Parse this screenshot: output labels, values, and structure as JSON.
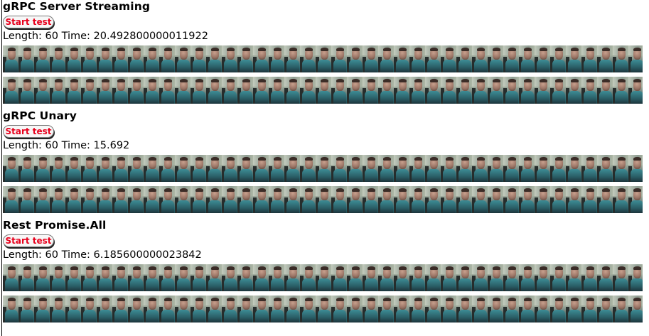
{
  "sections": [
    {
      "title": "gRPC Server Streaming",
      "button_label": "Start test",
      "result_text": "Length: 60 Time: 20.492800000011922"
    },
    {
      "title": "gRPC Unary",
      "button_label": "Start test",
      "result_text": "Length: 60 Time: 15.692"
    },
    {
      "title": "Rest Promise.All",
      "button_label": "Start test",
      "result_text": "Length: 60 Time: 6.185600000023842"
    }
  ],
  "images": {
    "strips_per_section": 2,
    "icon": "thumbnail-image"
  },
  "colors": {
    "button_text": "#e8001c"
  }
}
